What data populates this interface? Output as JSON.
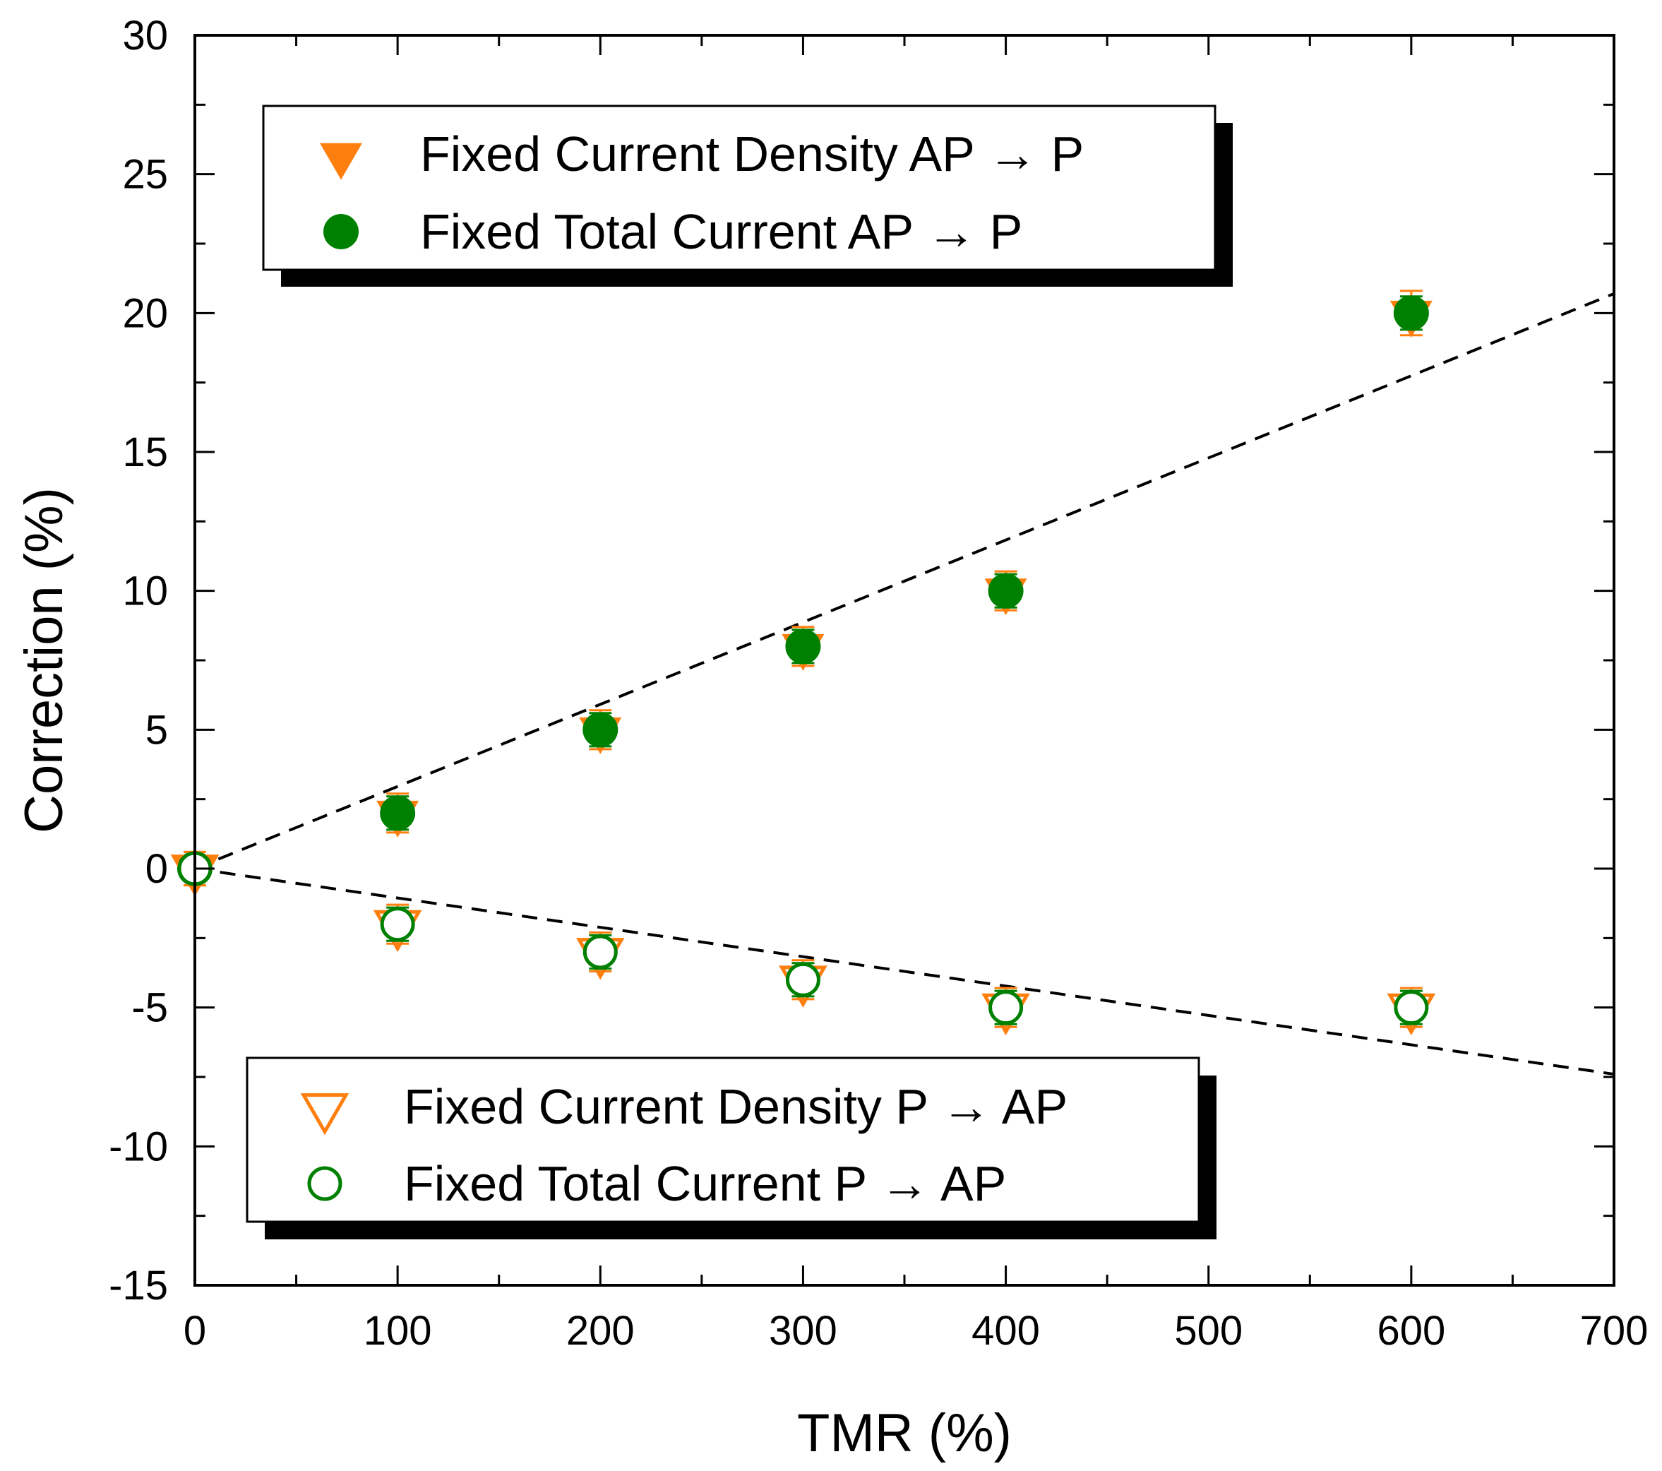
{
  "chart_data": {
    "type": "scatter",
    "title": "",
    "xlabel": "TMR (%)",
    "ylabel": "Correction (%)",
    "xlim": [
      0,
      700
    ],
    "ylim": [
      -15,
      30
    ],
    "x_ticks": [
      0,
      100,
      200,
      300,
      400,
      500,
      600,
      700
    ],
    "y_ticks": [
      30,
      25,
      20,
      15,
      10,
      5,
      0,
      -5,
      -10,
      -15
    ],
    "x_tick_labels": [
      "0",
      "100",
      "200",
      "300",
      "400",
      "500",
      "600",
      "700"
    ],
    "y_tick_labels": [
      "30",
      "25",
      "20",
      "15",
      "10",
      "5",
      "0",
      "-5",
      "-10",
      "-15"
    ],
    "grid": false,
    "series": [
      {
        "name": "Fixed Current Density AP → P",
        "marker": "triangle-down-filled",
        "color": "#ff7f0e",
        "x": [
          0,
          100,
          200,
          300,
          400,
          600
        ],
        "y": [
          0,
          2,
          5,
          8,
          10,
          20
        ],
        "yerr": [
          0.6,
          0.7,
          0.7,
          0.7,
          0.7,
          0.8
        ]
      },
      {
        "name": "Fixed Total Current AP → P",
        "marker": "circle-filled",
        "color": "#008000",
        "x": [
          0,
          100,
          200,
          300,
          400,
          600
        ],
        "y": [
          0,
          2,
          5,
          8,
          10,
          20
        ],
        "yerr": [
          0.4,
          0.6,
          0.6,
          0.6,
          0.6,
          0.6
        ]
      },
      {
        "name": "Fixed Current Density P → AP",
        "marker": "triangle-down-open",
        "color": "#ff7f0e",
        "x": [
          0,
          100,
          200,
          300,
          400,
          600
        ],
        "y": [
          0,
          -2,
          -3,
          -4,
          -5,
          -5
        ],
        "yerr": [
          0.6,
          0.7,
          0.7,
          0.7,
          0.7,
          0.7
        ]
      },
      {
        "name": "Fixed Total Current P → AP",
        "marker": "circle-open",
        "color": "#008000",
        "x": [
          0,
          100,
          200,
          300,
          400,
          600
        ],
        "y": [
          0,
          -2,
          -3,
          -4,
          -5,
          -5
        ],
        "yerr": [
          0.4,
          0.6,
          0.6,
          0.6,
          0.6,
          0.6
        ]
      }
    ],
    "fit_lines": [
      {
        "name": "upper-fit",
        "style": "dashed",
        "color": "#000000",
        "x": [
          0,
          700
        ],
        "y": [
          0,
          20.7
        ]
      },
      {
        "name": "lower-fit",
        "style": "dashed",
        "color": "#000000",
        "x": [
          0,
          700
        ],
        "y": [
          0,
          -7.4
        ]
      }
    ],
    "legends": [
      {
        "placement": "top-left",
        "entries": [
          "Fixed Current Density AP → P",
          "Fixed Total Current AP → P"
        ]
      },
      {
        "placement": "bottom-left",
        "entries": [
          "Fixed Current Density P → AP",
          "Fixed Total Current P → AP"
        ]
      }
    ]
  }
}
